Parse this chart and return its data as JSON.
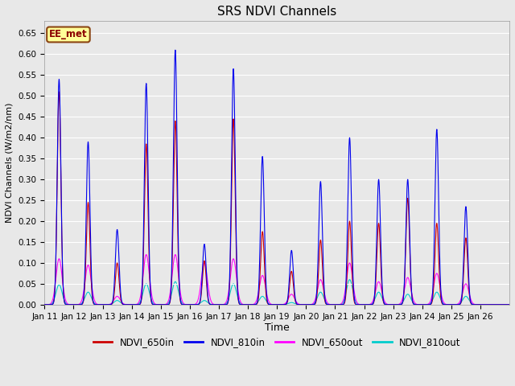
{
  "title": "SRS NDVI Channels",
  "xlabel": "Time",
  "ylabel": "NDVI Channels (W/m2/nm)",
  "ylim": [
    0.0,
    0.68
  ],
  "yticks": [
    0.0,
    0.05,
    0.1,
    0.15,
    0.2,
    0.25,
    0.3,
    0.35,
    0.4,
    0.45,
    0.5,
    0.55,
    0.6,
    0.65
  ],
  "figsize": [
    6.4,
    4.8
  ],
  "dpi": 100,
  "background_color": "#e8e8e8",
  "plot_bg_color": "#e8e8e8",
  "grid_color": "#ffffff",
  "annotation_text": "EE_met",
  "annotation_box_color": "#ffff99",
  "annotation_border_color": "#8B4513",
  "series": {
    "NDVI_650in": {
      "color": "#cc0000",
      "linewidth": 0.8,
      "zorder": 3
    },
    "NDVI_810in": {
      "color": "#0000ee",
      "linewidth": 0.8,
      "zorder": 4
    },
    "NDVI_650out": {
      "color": "#ff00ff",
      "linewidth": 0.8,
      "zorder": 2
    },
    "NDVI_810out": {
      "color": "#00cccc",
      "linewidth": 0.8,
      "zorder": 1
    }
  },
  "days": [
    11,
    12,
    13,
    14,
    15,
    16,
    17,
    18,
    19,
    20,
    21,
    22,
    23,
    24,
    25,
    26
  ],
  "peaks_810in": [
    0.54,
    0.39,
    0.18,
    0.53,
    0.61,
    0.145,
    0.565,
    0.355,
    0.13,
    0.295,
    0.4,
    0.3,
    0.3,
    0.42,
    0.235,
    0.0
  ],
  "peaks_650in": [
    0.51,
    0.245,
    0.1,
    0.385,
    0.44,
    0.105,
    0.445,
    0.175,
    0.08,
    0.155,
    0.2,
    0.195,
    0.255,
    0.195,
    0.16,
    0.0
  ],
  "peaks_650out": [
    0.11,
    0.095,
    0.02,
    0.12,
    0.12,
    0.1,
    0.11,
    0.07,
    0.025,
    0.06,
    0.1,
    0.055,
    0.065,
    0.075,
    0.05,
    0.0
  ],
  "peaks_810out": [
    0.048,
    0.03,
    0.01,
    0.05,
    0.055,
    0.01,
    0.05,
    0.02,
    0.005,
    0.03,
    0.06,
    0.03,
    0.025,
    0.03,
    0.02,
    0.0
  ],
  "samples_per_day": 240,
  "peak_hour": 12.0,
  "sigma_in_hours": 1.5,
  "sigma_out_hours": 2.5
}
